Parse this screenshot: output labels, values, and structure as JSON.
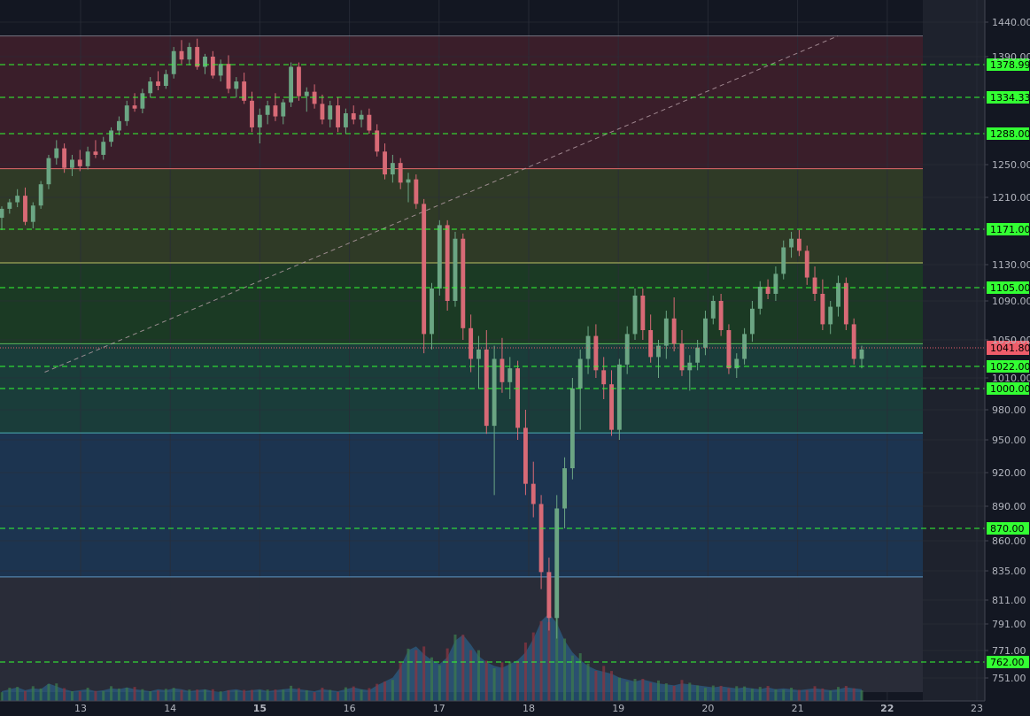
{
  "chart_data": {
    "type": "candlestick",
    "x_ticks": [
      {
        "label": "13",
        "day": 13,
        "bold": false
      },
      {
        "label": "14",
        "day": 14,
        "bold": false
      },
      {
        "label": "15",
        "day": 15,
        "bold": true
      },
      {
        "label": "16",
        "day": 16,
        "bold": false
      },
      {
        "label": "17",
        "day": 17,
        "bold": false
      },
      {
        "label": "18",
        "day": 18,
        "bold": false
      },
      {
        "label": "19",
        "day": 19,
        "bold": false
      },
      {
        "label": "20",
        "day": 20,
        "bold": false
      },
      {
        "label": "21",
        "day": 21,
        "bold": false
      },
      {
        "label": "22",
        "day": 22,
        "bold": true
      },
      {
        "label": "23",
        "day": 23,
        "bold": false
      }
    ],
    "y_ticks": [
      "1440.00",
      "1390.00",
      "1250.00",
      "1210.00",
      "1130.00",
      "1090.00",
      "1050.00",
      "1010.00",
      "980.00",
      "950.00",
      "920.00",
      "890.00",
      "860.00",
      "835.00",
      "811.00",
      "791.00",
      "771.00",
      "751.00"
    ],
    "price_levels": [
      {
        "label": "1378.99",
        "value": 1378.99
      },
      {
        "label": "1334.33",
        "value": 1334.33
      },
      {
        "label": "1288.00",
        "value": 1288.0
      },
      {
        "label": "1171.00",
        "value": 1171.0
      },
      {
        "label": "1105.00",
        "value": 1105.0
      },
      {
        "label": "1022.00",
        "value": 1022.0
      },
      {
        "label": "1000.00",
        "value": 1000.0
      },
      {
        "label": "870.00",
        "value": 870.0
      },
      {
        "label": "762.00",
        "value": 762.0
      }
    ],
    "current_price": {
      "label": "1041.80",
      "value": 1041.8
    },
    "zones": [
      {
        "top": 1420,
        "bottom": 1245,
        "color": "#3a1e2a"
      },
      {
        "top": 1245,
        "bottom": 1132,
        "color": "#2f3a26"
      },
      {
        "top": 1132,
        "bottom": 1046,
        "color": "#1b3a24"
      },
      {
        "top": 1046,
        "bottom": 957,
        "color": "#1a3d3a"
      },
      {
        "top": 957,
        "bottom": 830,
        "color": "#1c3450"
      },
      {
        "top": 830,
        "bottom": 740,
        "color": "#292c38"
      }
    ],
    "zone_lines": [
      1245,
      1132,
      1046,
      957,
      830
    ],
    "trendline": {
      "from": {
        "day": 12.6,
        "price": 1016
      },
      "to": {
        "day": 21.45,
        "price": 1420
      }
    },
    "colors": {
      "up": "#6ba583",
      "down": "#d86a76",
      "level_line": "#33ff33",
      "level_label_bg": "#33ff33",
      "current_label_bg": "#ef5d6a",
      "grid": "#2a2e39",
      "background": "#131722",
      "volume_area": "#2e6f9e",
      "volume_up": "#3c7a4c",
      "volume_down": "#8a3440"
    },
    "candles_ohlc": [
      [
        1185,
        1199,
        1170,
        1196
      ],
      [
        1196,
        1208,
        1190,
        1204
      ],
      [
        1204,
        1220,
        1198,
        1212
      ],
      [
        1212,
        1222,
        1176,
        1180
      ],
      [
        1180,
        1204,
        1172,
        1200
      ],
      [
        1200,
        1230,
        1196,
        1226
      ],
      [
        1226,
        1262,
        1220,
        1258
      ],
      [
        1258,
        1280,
        1250,
        1270
      ],
      [
        1270,
        1276,
        1240,
        1246
      ],
      [
        1246,
        1262,
        1236,
        1256
      ],
      [
        1256,
        1268,
        1242,
        1248
      ],
      [
        1248,
        1272,
        1244,
        1266
      ],
      [
        1266,
        1280,
        1258,
        1262
      ],
      [
        1262,
        1284,
        1256,
        1278
      ],
      [
        1278,
        1296,
        1272,
        1292
      ],
      [
        1292,
        1310,
        1286,
        1304
      ],
      [
        1304,
        1330,
        1298,
        1324
      ],
      [
        1324,
        1340,
        1316,
        1320
      ],
      [
        1320,
        1346,
        1314,
        1340
      ],
      [
        1340,
        1362,
        1334,
        1356
      ],
      [
        1356,
        1370,
        1344,
        1350
      ],
      [
        1350,
        1372,
        1346,
        1366
      ],
      [
        1366,
        1404,
        1360,
        1398
      ],
      [
        1398,
        1414,
        1380,
        1386
      ],
      [
        1386,
        1410,
        1378,
        1404
      ],
      [
        1404,
        1416,
        1372,
        1376
      ],
      [
        1376,
        1394,
        1366,
        1390
      ],
      [
        1390,
        1398,
        1360,
        1364
      ],
      [
        1364,
        1386,
        1356,
        1380
      ],
      [
        1380,
        1392,
        1340,
        1346
      ],
      [
        1346,
        1362,
        1334,
        1356
      ],
      [
        1356,
        1368,
        1326,
        1330
      ],
      [
        1330,
        1342,
        1290,
        1296
      ],
      [
        1296,
        1320,
        1276,
        1312
      ],
      [
        1312,
        1330,
        1300,
        1324
      ],
      [
        1324,
        1340,
        1304,
        1310
      ],
      [
        1310,
        1332,
        1300,
        1328
      ],
      [
        1328,
        1382,
        1322,
        1376
      ],
      [
        1376,
        1382,
        1330,
        1336
      ],
      [
        1336,
        1348,
        1316,
        1342
      ],
      [
        1342,
        1352,
        1320,
        1326
      ],
      [
        1326,
        1338,
        1300,
        1306
      ],
      [
        1306,
        1330,
        1296,
        1324
      ],
      [
        1324,
        1334,
        1290,
        1296
      ],
      [
        1296,
        1320,
        1288,
        1314
      ],
      [
        1314,
        1324,
        1300,
        1306
      ],
      [
        1306,
        1318,
        1296,
        1312
      ],
      [
        1312,
        1320,
        1288,
        1292
      ],
      [
        1292,
        1300,
        1260,
        1266
      ],
      [
        1266,
        1276,
        1232,
        1238
      ],
      [
        1238,
        1262,
        1228,
        1252
      ],
      [
        1252,
        1258,
        1220,
        1228
      ],
      [
        1228,
        1240,
        1204,
        1232
      ],
      [
        1232,
        1238,
        1196,
        1202
      ],
      [
        1202,
        1208,
        1036,
        1056
      ],
      [
        1056,
        1110,
        1040,
        1104
      ],
      [
        1104,
        1182,
        1096,
        1176
      ],
      [
        1176,
        1182,
        1080,
        1090
      ],
      [
        1090,
        1168,
        1084,
        1160
      ],
      [
        1160,
        1166,
        1050,
        1062
      ],
      [
        1062,
        1076,
        1016,
        1030
      ],
      [
        1030,
        1054,
        1000,
        1040
      ],
      [
        1040,
        1060,
        956,
        964
      ],
      [
        964,
        1044,
        900,
        1030
      ],
      [
        1030,
        1052,
        996,
        1006
      ],
      [
        1006,
        1032,
        990,
        1020
      ],
      [
        1020,
        1028,
        950,
        962
      ],
      [
        962,
        980,
        900,
        910
      ],
      [
        910,
        930,
        880,
        892
      ],
      [
        892,
        900,
        820,
        834
      ],
      [
        834,
        846,
        786,
        796
      ],
      [
        796,
        900,
        780,
        888
      ],
      [
        888,
        934,
        870,
        924
      ],
      [
        924,
        1010,
        914,
        1000
      ],
      [
        1000,
        1040,
        960,
        1030
      ],
      [
        1030,
        1064,
        1014,
        1054
      ],
      [
        1054,
        1066,
        1010,
        1018
      ],
      [
        1018,
        1032,
        990,
        1004
      ],
      [
        1004,
        1018,
        954,
        960
      ],
      [
        960,
        1030,
        950,
        1024
      ],
      [
        1024,
        1064,
        1014,
        1056
      ],
      [
        1056,
        1104,
        1050,
        1096
      ],
      [
        1096,
        1104,
        1050,
        1060
      ],
      [
        1060,
        1076,
        1026,
        1032
      ],
      [
        1032,
        1050,
        1010,
        1044
      ],
      [
        1044,
        1080,
        1030,
        1072
      ],
      [
        1072,
        1094,
        1038,
        1046
      ],
      [
        1046,
        1060,
        1012,
        1018
      ],
      [
        1018,
        1034,
        998,
        1026
      ],
      [
        1026,
        1050,
        1018,
        1042
      ],
      [
        1042,
        1080,
        1034,
        1072
      ],
      [
        1072,
        1096,
        1066,
        1090
      ],
      [
        1090,
        1098,
        1054,
        1060
      ],
      [
        1060,
        1066,
        1014,
        1020
      ],
      [
        1020,
        1036,
        1010,
        1030
      ],
      [
        1030,
        1062,
        1024,
        1056
      ],
      [
        1056,
        1090,
        1048,
        1082
      ],
      [
        1082,
        1112,
        1076,
        1106
      ],
      [
        1106,
        1114,
        1092,
        1098
      ],
      [
        1098,
        1128,
        1090,
        1120
      ],
      [
        1120,
        1158,
        1114,
        1150
      ],
      [
        1150,
        1168,
        1138,
        1160
      ],
      [
        1160,
        1170,
        1140,
        1146
      ],
      [
        1146,
        1152,
        1108,
        1116
      ],
      [
        1116,
        1128,
        1090,
        1098
      ],
      [
        1098,
        1114,
        1060,
        1066
      ],
      [
        1066,
        1090,
        1056,
        1084
      ],
      [
        1084,
        1118,
        1074,
        1110
      ],
      [
        1110,
        1116,
        1060,
        1066
      ],
      [
        1066,
        1072,
        1024,
        1030
      ],
      [
        1030,
        1044,
        1020,
        1040
      ]
    ],
    "volume_profile": [
      0.1,
      0.12,
      0.14,
      0.11,
      0.13,
      0.12,
      0.18,
      0.15,
      0.12,
      0.1,
      0.11,
      0.12,
      0.1,
      0.11,
      0.13,
      0.12,
      0.14,
      0.12,
      0.11,
      0.1,
      0.12,
      0.11,
      0.13,
      0.12,
      0.1,
      0.11,
      0.12,
      0.1,
      0.09,
      0.11,
      0.12,
      0.1,
      0.11,
      0.12,
      0.1,
      0.11,
      0.12,
      0.13,
      0.12,
      0.11,
      0.1,
      0.12,
      0.11,
      0.1,
      0.12,
      0.14,
      0.12,
      0.11,
      0.16,
      0.2,
      0.24,
      0.35,
      0.52,
      0.56,
      0.48,
      0.42,
      0.38,
      0.45,
      0.62,
      0.68,
      0.58,
      0.46,
      0.4,
      0.36,
      0.34,
      0.38,
      0.42,
      0.5,
      0.64,
      0.82,
      0.9,
      0.8,
      0.62,
      0.5,
      0.42,
      0.36,
      0.32,
      0.3,
      0.28,
      0.24,
      0.22,
      0.2,
      0.22,
      0.2,
      0.18,
      0.17,
      0.16,
      0.18,
      0.17,
      0.16,
      0.15,
      0.14,
      0.15,
      0.14,
      0.13,
      0.14,
      0.13,
      0.12,
      0.14,
      0.12,
      0.13,
      0.12,
      0.11,
      0.12,
      0.13,
      0.12,
      0.11,
      0.12,
      0.14,
      0.13,
      0.12
    ]
  }
}
